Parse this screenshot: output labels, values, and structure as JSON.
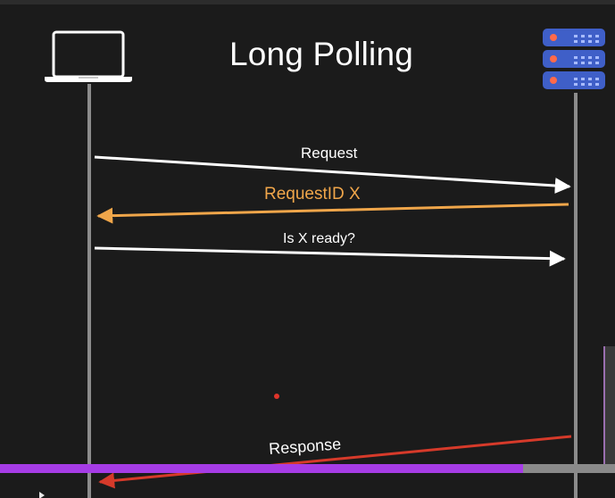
{
  "title": "Long Polling",
  "messages": {
    "request": "Request",
    "request_id": "RequestID X",
    "is_ready": "Is X ready?",
    "response": "Response"
  },
  "colors": {
    "background": "#1b1b1b",
    "request_arrow": "#ffffff",
    "request_id_arrow": "#f0a64a",
    "response_arrow": "#d63a2a",
    "lifeline": "#8c8c8c",
    "progress_fill": "#a63ce6",
    "server_rack": "#3f5fc8"
  },
  "icons": {
    "client": "laptop-icon",
    "server": "server-rack-icon"
  },
  "video_player": {
    "progress_fraction": 0.85
  }
}
